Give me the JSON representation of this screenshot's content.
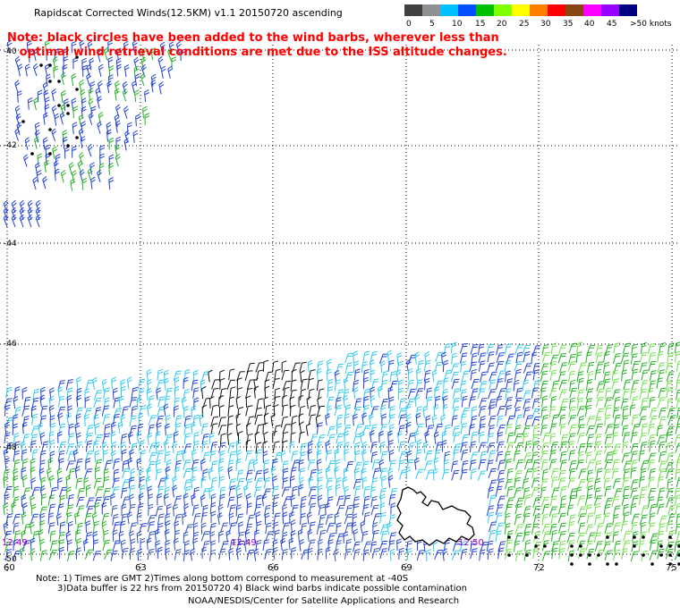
{
  "title": "Rapidscat Corrected Winds(12.5KM) v1.1 20150720 ascending",
  "note": {
    "line1": "Note: black circles have been added to the wind barbs, wherever less than",
    "line2": "optimal wind retrieval conditions are met due to the ISS altitude changes."
  },
  "legend": {
    "labels": [
      "0",
      "5",
      "10",
      "15",
      "20",
      "25",
      "30",
      "35",
      "40",
      "45",
      ">50 knots"
    ],
    "colors": [
      "#404040",
      "#909090",
      "#00c0ff",
      "#0050ff",
      "#00c000",
      "#80ff00",
      "#ffff00",
      "#ff8000",
      "#ff0000",
      "#8b4513",
      "#ff00ff",
      "#9900ff",
      "#000080"
    ]
  },
  "map": {
    "latitudes": [
      "-40",
      "-42",
      "-44",
      "-46",
      "-48",
      "-50"
    ],
    "longitudes": [
      "60",
      "63",
      "66",
      "69",
      "72",
      "75"
    ],
    "time_labels": [
      "12:49",
      "12:49",
      "12:50"
    ]
  },
  "footer": {
    "line1": "Note: 1) Times are GMT 2)Times along bottom correspond to measurement at -40S",
    "line2": "3)Data buffer is 22 hrs from 20150720 4) Black wind barbs indicate possible contamination",
    "credit": "NOAA/NESDIS/Center for Satellite Applications and Research"
  }
}
